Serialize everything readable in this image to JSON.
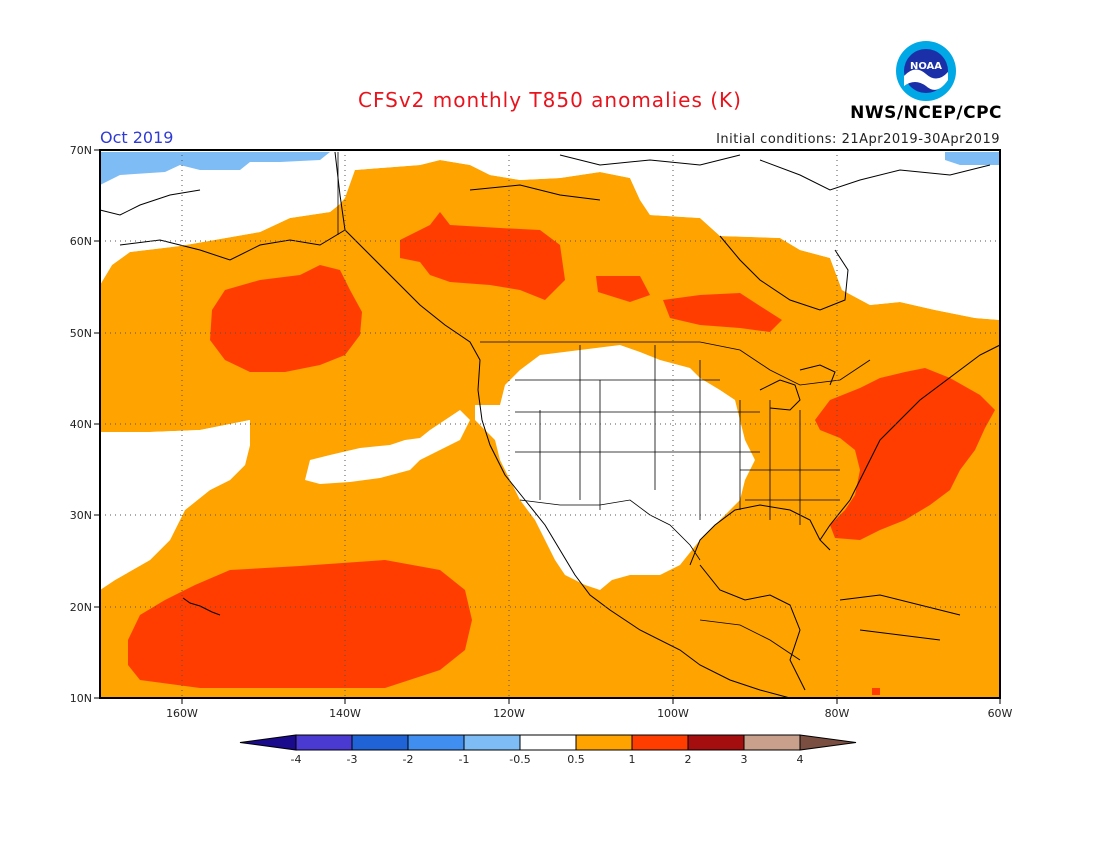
{
  "title": "CFSv2 monthly T850 anomalies (K)",
  "period": "Oct 2019",
  "initial_conditions": "Initial conditions: 21Apr2019-30Apr2019",
  "agency": "NWS/NCEP/CPC",
  "logo_text": "NOAA",
  "lat_labels": [
    "70N",
    "60N",
    "50N",
    "40N",
    "30N",
    "20N",
    "10N"
  ],
  "lon_labels": [
    "160W",
    "140W",
    "120W",
    "100W",
    "80W",
    "60W"
  ],
  "colorbar": {
    "labels": [
      "-4",
      "-3",
      "-2",
      "-1",
      "-0.5",
      "0.5",
      "1",
      "2",
      "3",
      "4"
    ],
    "colors": [
      "#1a0a8c",
      "#4b3ad1",
      "#1f63d6",
      "#3f8ef0",
      "#7dbcf5",
      "#ffffff",
      "#ffa300",
      "#ff3d00",
      "#a50e0e",
      "#c8a08c",
      "#7a4e40"
    ]
  },
  "fill_colors": {
    "near_normal": "#ffffff",
    "warm1": "#ffa300",
    "warm2": "#ff3d00",
    "cool1": "#7dbcf5"
  }
}
